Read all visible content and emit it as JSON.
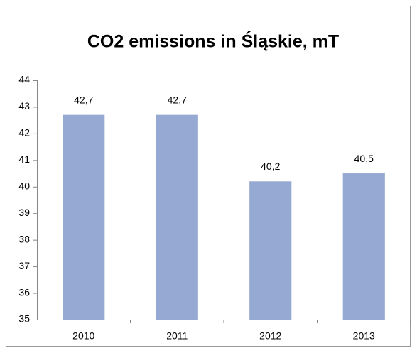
{
  "chart_data": {
    "type": "bar",
    "title": "CO2 emissions in Śląskie, mT",
    "categories": [
      "2010",
      "2011",
      "2012",
      "2013"
    ],
    "values": [
      42.7,
      42.7,
      40.2,
      40.5
    ],
    "value_labels": [
      "42,7",
      "42,7",
      "40,2",
      "40,5"
    ],
    "color": "#95a9d2",
    "ylim": [
      35,
      44
    ],
    "yticks": [
      35,
      36,
      37,
      38,
      39,
      40,
      41,
      42,
      43,
      44
    ],
    "grid": false
  }
}
